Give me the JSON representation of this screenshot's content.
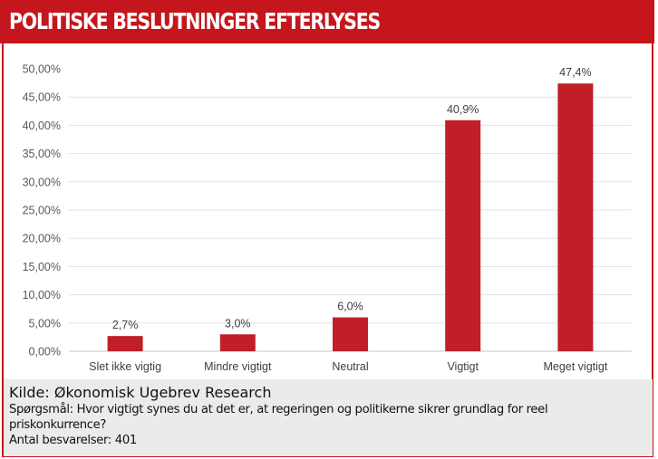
{
  "title": "POLITISKE BESLUTNINGER EFTERLYSES",
  "colors": {
    "brand_red": "#c4161c",
    "bar": "#c01f28",
    "footer_bg": "#ebebeb",
    "grid": "#e3e3e3"
  },
  "chart_data": {
    "type": "bar",
    "title": "POLITISKE BESLUTNINGER EFTERLYSES",
    "xlabel": "",
    "ylabel": "",
    "categories": [
      "Slet ikke vigtig",
      "Mindre vigtigt",
      "Neutral",
      "Vigtigt",
      "Meget vigtigt"
    ],
    "values": [
      2.7,
      3.0,
      6.0,
      40.9,
      47.4
    ],
    "data_labels": [
      "2,7%",
      "3,0%",
      "6,0%",
      "40,9%",
      "47,4%"
    ],
    "ylim": [
      0,
      50
    ],
    "yticks": [
      0,
      5,
      10,
      15,
      20,
      25,
      30,
      35,
      40,
      45,
      50
    ],
    "ytick_labels": [
      "0,00%",
      "5,00%",
      "10,00%",
      "15,00%",
      "20,00%",
      "25,00%",
      "30,00%",
      "35,00%",
      "40,00%",
      "45,00%",
      "50,00%"
    ],
    "grid": true,
    "legend": "none"
  },
  "footer": {
    "source": "Kilde: Økonomisk Ugebrev Research",
    "question_line1": "Spørgsmål: Hvor vigtigt synes du at det er, at regeringen og politikerne sikrer grundlag for reel",
    "question_line2": "priskonkurrence?",
    "count": "Antal besvarelser: 401"
  }
}
